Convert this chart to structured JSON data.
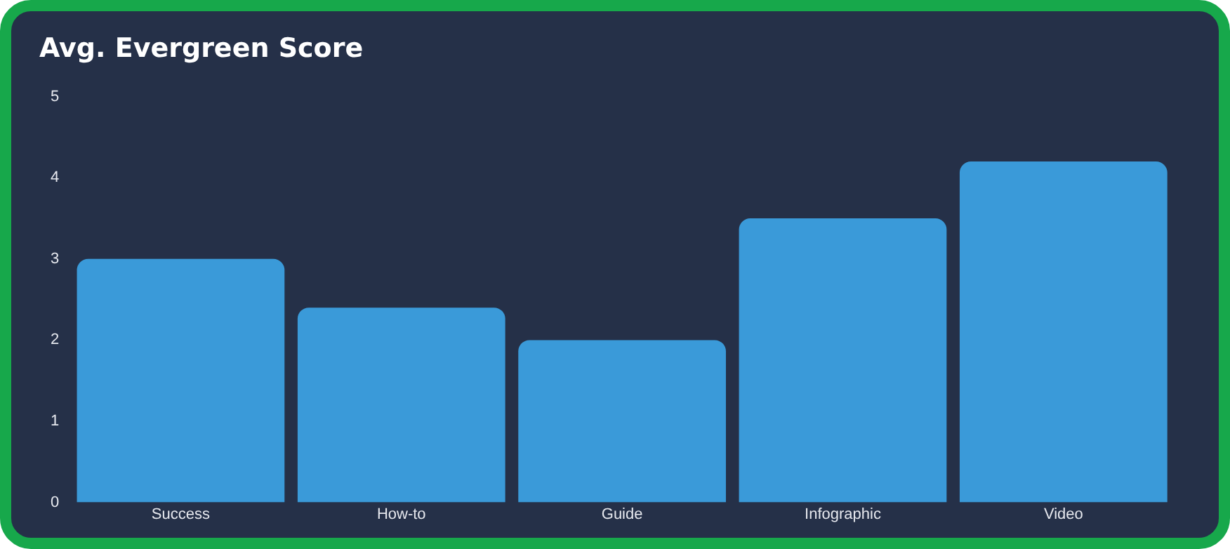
{
  "chart_data": {
    "type": "bar",
    "title": "Avg. Evergreen Score",
    "categories": [
      "Success",
      "How-to",
      "Guide",
      "Infographic",
      "Video"
    ],
    "values": [
      3,
      2.4,
      2,
      3.5,
      4.2
    ],
    "color": "#3a9ad9",
    "ylim": [
      0,
      5
    ],
    "yticks": [
      0,
      1,
      2,
      3,
      4,
      5
    ],
    "grid": false,
    "legend": false
  }
}
